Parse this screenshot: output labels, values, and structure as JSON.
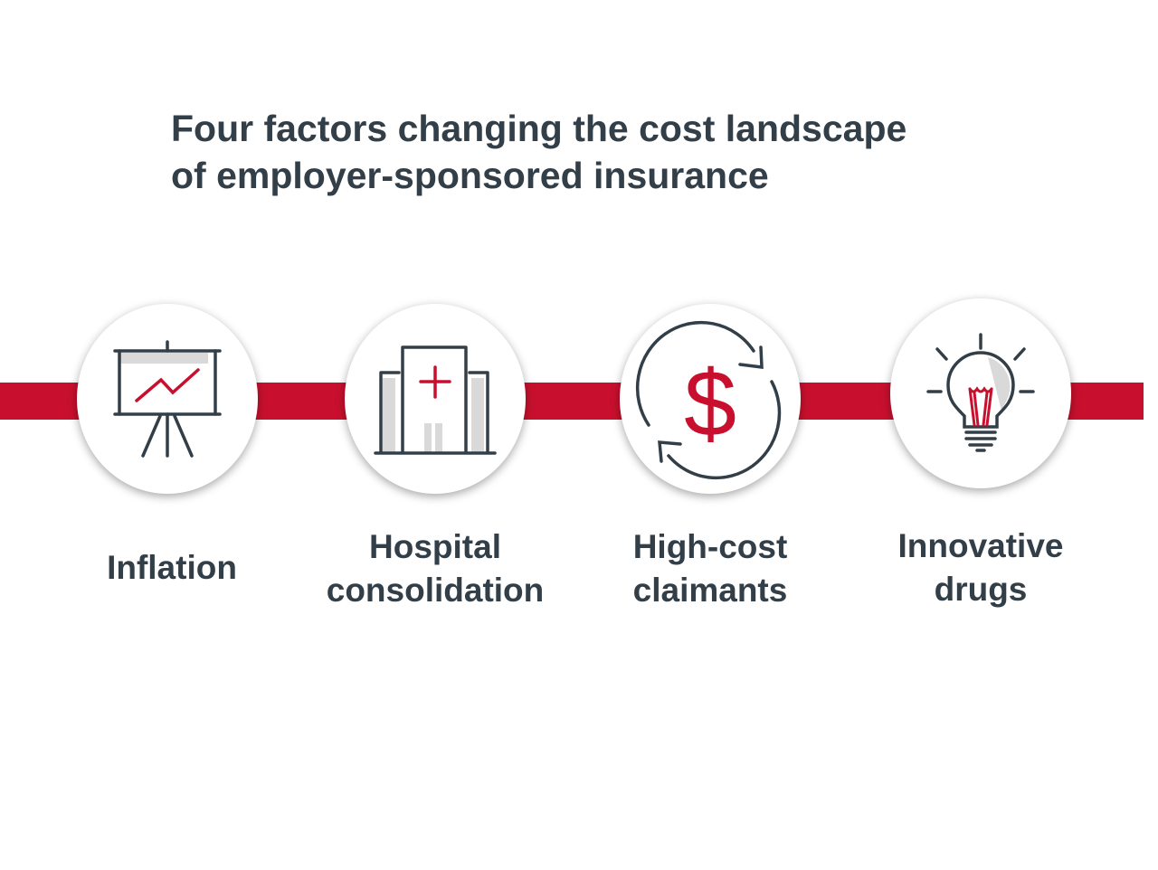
{
  "title": {
    "line1": "Four factors changing the cost landscape",
    "line2": "of employer-sponsored insurance"
  },
  "colors": {
    "accent": "#c8102e",
    "text": "#333f48",
    "icon_fill": "#d9d9d9"
  },
  "factors": [
    {
      "icon": "presentation-chart-icon",
      "label_lines": [
        "Inflation"
      ]
    },
    {
      "icon": "hospital-icon",
      "label_lines": [
        "Hospital",
        "consolidation"
      ]
    },
    {
      "icon": "dollar-cycle-icon",
      "label_lines": [
        "High-cost",
        "claimants"
      ]
    },
    {
      "icon": "lightbulb-icon",
      "label_lines": [
        "Innovative",
        "drugs"
      ]
    }
  ]
}
